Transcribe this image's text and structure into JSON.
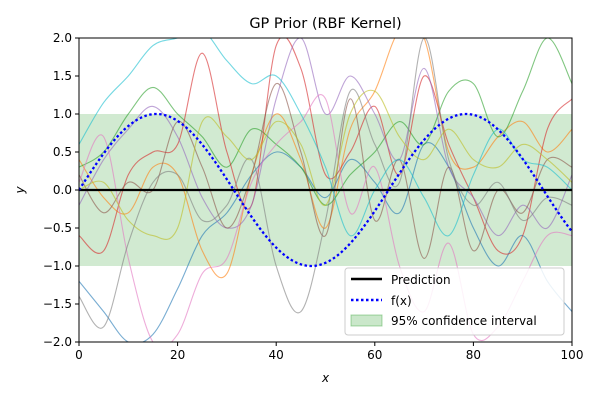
{
  "chart_data": {
    "type": "line",
    "title": "GP Prior (RBF Kernel)",
    "xlabel": "x",
    "ylabel": "y",
    "xlim": [
      0,
      100
    ],
    "ylim": [
      -2.0,
      2.0
    ],
    "xticks": [
      0,
      20,
      40,
      60,
      80,
      100
    ],
    "xtick_labels": [
      "0",
      "20",
      "40",
      "60",
      "80",
      "100"
    ],
    "yticks": [
      -2.0,
      -1.5,
      -1.0,
      -0.5,
      0.0,
      0.5,
      1.0,
      1.5,
      2.0
    ],
    "ytick_labels": [
      "−2.0",
      "−1.5",
      "−1.0",
      "−0.5",
      "0.0",
      "0.5",
      "1.0",
      "1.5",
      "2.0"
    ],
    "grid": false,
    "legend_position": "lower-right",
    "legend": [
      {
        "label": "Prediction",
        "style": "solid",
        "color": "#000000"
      },
      {
        "label": "f(x)",
        "style": "dotted",
        "color": "#0000ff"
      },
      {
        "label": "95% confidence interval",
        "style": "band",
        "color": "#2ca02c"
      }
    ],
    "confidence_band": {
      "lower": -1.0,
      "upper": 1.0,
      "color": "#2ca02c",
      "opacity": 0.22
    },
    "prediction": {
      "x": [
        0,
        100
      ],
      "y": [
        0.0,
        0.0
      ],
      "color": "#000000"
    },
    "true_function": {
      "amplitude": 1.0,
      "period": 62.8,
      "phase_x": 0,
      "color": "#0000ff"
    },
    "samples": [
      {
        "color": "#1f77b4",
        "x": [
          0,
          5,
          10,
          15,
          20,
          25,
          30,
          35,
          40,
          45,
          50,
          55,
          60,
          65,
          70,
          75,
          80,
          85,
          90,
          95,
          100
        ],
        "y": [
          -1.2,
          -1.6,
          -2.0,
          -1.9,
          -1.3,
          -0.6,
          -0.3,
          0.2,
          0.5,
          0.3,
          -0.1,
          0.4,
          0.1,
          -0.3,
          0.6,
          0.3,
          -0.5,
          -1.0,
          -0.6,
          -1.2,
          -1.6
        ]
      },
      {
        "color": "#ff7f0e",
        "x": [
          0,
          5,
          10,
          15,
          20,
          25,
          30,
          35,
          40,
          45,
          50,
          55,
          60,
          65,
          70,
          75,
          80,
          85,
          90,
          95,
          100
        ],
        "y": [
          0.4,
          -0.1,
          -0.3,
          0.3,
          0.2,
          -0.8,
          -1.1,
          0.2,
          1.0,
          0.4,
          -0.5,
          0.8,
          1.3,
          2.1,
          2.0,
          0.5,
          0.3,
          0.7,
          0.9,
          0.5,
          0.8
        ]
      },
      {
        "color": "#2ca02c",
        "x": [
          0,
          5,
          10,
          15,
          20,
          25,
          30,
          35,
          40,
          45,
          50,
          55,
          60,
          65,
          70,
          75,
          80,
          85,
          90,
          95,
          100
        ],
        "y": [
          0.3,
          0.5,
          1.0,
          1.35,
          1.0,
          0.7,
          0.3,
          0.8,
          0.6,
          0.3,
          -0.2,
          0.2,
          0.5,
          0.9,
          0.6,
          1.3,
          1.4,
          0.7,
          1.3,
          2.0,
          1.4
        ]
      },
      {
        "color": "#d62728",
        "x": [
          0,
          5,
          10,
          15,
          20,
          25,
          30,
          35,
          40,
          45,
          50,
          55,
          60,
          65,
          70,
          75,
          80,
          85,
          90,
          95,
          100
        ],
        "y": [
          -0.6,
          -0.8,
          0.2,
          0.5,
          0.6,
          1.8,
          0.5,
          -0.2,
          1.9,
          1.6,
          0.2,
          0.5,
          1.1,
          0.2,
          1.5,
          0.6,
          -0.1,
          -0.8,
          -0.6,
          0.8,
          1.2
        ]
      },
      {
        "color": "#9467bd",
        "x": [
          0,
          5,
          10,
          15,
          20,
          25,
          30,
          35,
          40,
          45,
          50,
          55,
          60,
          65,
          70,
          75,
          80,
          85,
          90,
          95,
          100
        ],
        "y": [
          -0.2,
          0.4,
          0.8,
          1.1,
          0.7,
          -0.1,
          -0.5,
          -0.2,
          1.2,
          2.0,
          1.0,
          1.5,
          1.0,
          0.4,
          1.6,
          0.3,
          -0.1,
          -0.6,
          -0.2,
          -0.5,
          0.2
        ]
      },
      {
        "color": "#8c564b",
        "x": [
          0,
          5,
          10,
          15,
          20,
          25,
          30,
          35,
          40,
          45,
          50,
          55,
          60,
          65,
          70,
          75,
          80,
          85,
          90,
          95,
          100
        ],
        "y": [
          0.2,
          -0.3,
          0.1,
          0.0,
          0.9,
          0.3,
          -0.5,
          0.2,
          1.4,
          0.5,
          -0.6,
          1.2,
          -0.4,
          0.4,
          -0.9,
          0.3,
          -0.8,
          0.0,
          -0.3,
          0.4,
          0.3
        ]
      },
      {
        "color": "#e377c2",
        "x": [
          0,
          5,
          10,
          15,
          20,
          25,
          30,
          35,
          40,
          45,
          50,
          55,
          60,
          65,
          70,
          75,
          80,
          85,
          90,
          95,
          100
        ],
        "y": [
          0.1,
          0.7,
          -0.9,
          -2.0,
          -1.9,
          -1.1,
          -0.9,
          0.1,
          0.6,
          0.9,
          1.2,
          -0.3,
          0.3,
          -1.0,
          -1.6,
          -0.7,
          -1.9,
          -1.8,
          -1.2,
          -0.6,
          -0.6
        ]
      },
      {
        "color": "#7f7f7f",
        "x": [
          0,
          5,
          10,
          15,
          20,
          25,
          30,
          35,
          40,
          45,
          50,
          55,
          60,
          65,
          70,
          75,
          80,
          85,
          90,
          95,
          100
        ],
        "y": [
          -1.4,
          -1.8,
          -0.7,
          0.1,
          0.2,
          -0.4,
          -0.2,
          0.4,
          -1.0,
          -1.6,
          -0.4,
          1.3,
          0.6,
          0.1,
          2.0,
          0.4,
          -0.2,
          0.1,
          -0.4,
          -0.1,
          -0.2
        ]
      },
      {
        "color": "#bcbd22",
        "x": [
          0,
          5,
          10,
          15,
          20,
          25,
          30,
          35,
          40,
          45,
          50,
          55,
          60,
          65,
          70,
          75,
          80,
          85,
          90,
          95,
          100
        ],
        "y": [
          0.0,
          0.1,
          -0.4,
          -0.6,
          -0.5,
          0.9,
          0.7,
          0.4,
          0.9,
          0.6,
          -0.2,
          1.0,
          1.3,
          0.7,
          0.4,
          0.8,
          0.4,
          0.3,
          0.6,
          0.4,
          0.1
        ]
      },
      {
        "color": "#17becf",
        "x": [
          0,
          5,
          10,
          15,
          20,
          25,
          30,
          35,
          40,
          45,
          50,
          55,
          60,
          65,
          70,
          75,
          80,
          85,
          90,
          95,
          100
        ],
        "y": [
          0.6,
          1.15,
          1.5,
          1.9,
          2.0,
          2.1,
          1.7,
          1.4,
          1.5,
          1.0,
          0.3,
          -0.6,
          0.0,
          0.4,
          -0.1,
          -0.6,
          0.2,
          0.8,
          0.4,
          0.3,
          0.0
        ]
      }
    ]
  }
}
